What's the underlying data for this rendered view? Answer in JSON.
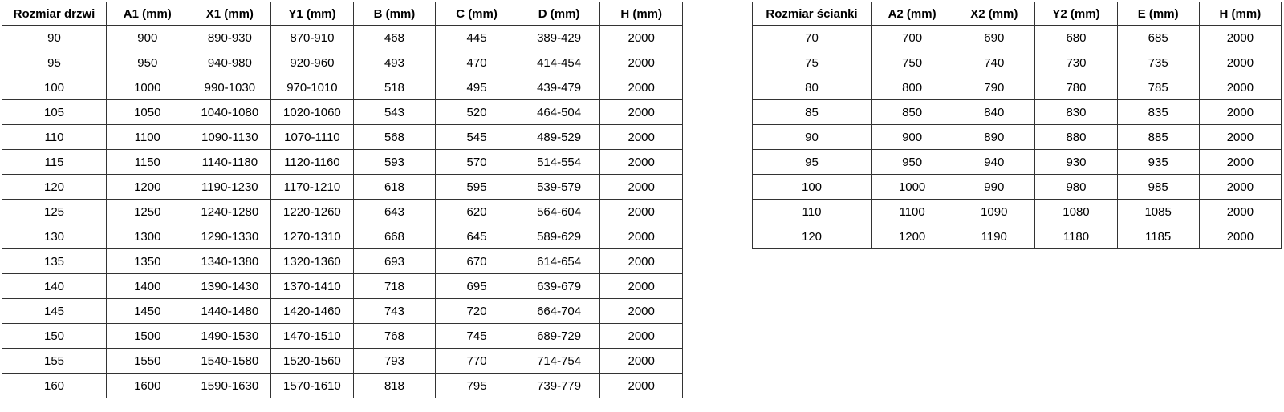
{
  "page": {
    "background": "#ffffff",
    "border_color": "#333333",
    "text_color": "#000000"
  },
  "tables": [
    {
      "name": "door-dimensions",
      "headers": [
        "Rozmiar drzwi",
        "A1 (mm)",
        "X1 (mm)",
        "Y1 (mm)",
        "B (mm)",
        "C (mm)",
        "D (mm)",
        "H (mm)"
      ],
      "rows": [
        [
          "90",
          "900",
          "890-930",
          "870-910",
          "468",
          "445",
          "389-429",
          "2000"
        ],
        [
          "95",
          "950",
          "940-980",
          "920-960",
          "493",
          "470",
          "414-454",
          "2000"
        ],
        [
          "100",
          "1000",
          "990-1030",
          "970-1010",
          "518",
          "495",
          "439-479",
          "2000"
        ],
        [
          "105",
          "1050",
          "1040-1080",
          "1020-1060",
          "543",
          "520",
          "464-504",
          "2000"
        ],
        [
          "110",
          "1100",
          "1090-1130",
          "1070-1110",
          "568",
          "545",
          "489-529",
          "2000"
        ],
        [
          "115",
          "1150",
          "1140-1180",
          "1120-1160",
          "593",
          "570",
          "514-554",
          "2000"
        ],
        [
          "120",
          "1200",
          "1190-1230",
          "1170-1210",
          "618",
          "595",
          "539-579",
          "2000"
        ],
        [
          "125",
          "1250",
          "1240-1280",
          "1220-1260",
          "643",
          "620",
          "564-604",
          "2000"
        ],
        [
          "130",
          "1300",
          "1290-1330",
          "1270-1310",
          "668",
          "645",
          "589-629",
          "2000"
        ],
        [
          "135",
          "1350",
          "1340-1380",
          "1320-1360",
          "693",
          "670",
          "614-654",
          "2000"
        ],
        [
          "140",
          "1400",
          "1390-1430",
          "1370-1410",
          "718",
          "695",
          "639-679",
          "2000"
        ],
        [
          "145",
          "1450",
          "1440-1480",
          "1420-1460",
          "743",
          "720",
          "664-704",
          "2000"
        ],
        [
          "150",
          "1500",
          "1490-1530",
          "1470-1510",
          "768",
          "745",
          "689-729",
          "2000"
        ],
        [
          "155",
          "1550",
          "1540-1580",
          "1520-1560",
          "793",
          "770",
          "714-754",
          "2000"
        ],
        [
          "160",
          "1600",
          "1590-1630",
          "1570-1610",
          "818",
          "795",
          "739-779",
          "2000"
        ]
      ]
    },
    {
      "name": "wall-panel-dimensions",
      "headers": [
        "Rozmiar ścianki",
        "A2 (mm)",
        "X2 (mm)",
        "Y2 (mm)",
        "E (mm)",
        "H (mm)"
      ],
      "rows": [
        [
          "70",
          "700",
          "690",
          "680",
          "685",
          "2000"
        ],
        [
          "75",
          "750",
          "740",
          "730",
          "735",
          "2000"
        ],
        [
          "80",
          "800",
          "790",
          "780",
          "785",
          "2000"
        ],
        [
          "85",
          "850",
          "840",
          "830",
          "835",
          "2000"
        ],
        [
          "90",
          "900",
          "890",
          "880",
          "885",
          "2000"
        ],
        [
          "95",
          "950",
          "940",
          "930",
          "935",
          "2000"
        ],
        [
          "100",
          "1000",
          "990",
          "980",
          "985",
          "2000"
        ],
        [
          "110",
          "1100",
          "1090",
          "1080",
          "1085",
          "2000"
        ],
        [
          "120",
          "1200",
          "1190",
          "1180",
          "1185",
          "2000"
        ]
      ]
    }
  ]
}
